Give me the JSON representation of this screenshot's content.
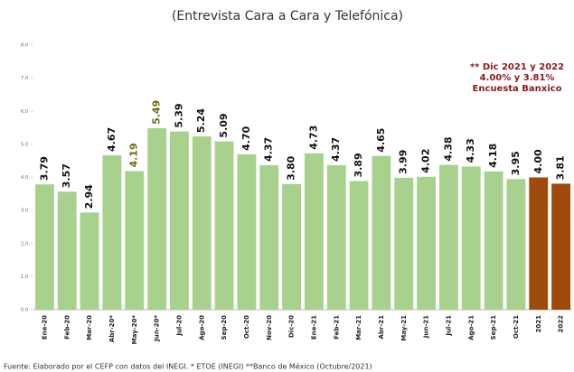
{
  "chart_data": {
    "type": "bar",
    "title": "(Entrevista Cara a Cara y Telefónica)",
    "annotation": [
      "** Dic 2021 y 2022",
      "4.00% y 3.81%",
      "Encuesta Banxico"
    ],
    "source": "Fuente: Elaborado por el CEFP con datos del INEGI. * ETOE (INEGI) **Banco de México (Octubre/2021)",
    "categories": [
      "Ene-20",
      "Feb-20",
      "Mar-20",
      "Abr-20*",
      "May-20*",
      "Jun-20*",
      "Jul-20",
      "Ago-20",
      "Sep-20",
      "Oct-20",
      "Nov-20",
      "Dic-20",
      "Ene-21",
      "Feb-21",
      "Mar-21",
      "Abr-21",
      "May-21",
      "Jun-21",
      "Jul-21",
      "Ago-21",
      "Sep-21",
      "Oct-21",
      "2021",
      "2022"
    ],
    "values": [
      3.79,
      3.57,
      2.94,
      4.67,
      4.19,
      5.49,
      5.39,
      5.24,
      5.09,
      4.7,
      4.37,
      3.8,
      4.73,
      4.37,
      3.89,
      4.65,
      3.99,
      4.02,
      4.38,
      4.33,
      4.18,
      3.95,
      4.0,
      3.81
    ],
    "value_labels": [
      "3.79",
      "3.57",
      "2.94",
      "4.67",
      "4.19",
      "5.49",
      "5.39",
      "5.24",
      "5.09",
      "4.70",
      "4.37",
      "3.80",
      "4.73",
      "4.37",
      "3.89",
      "4.65",
      "3.99",
      "4.02",
      "4.38",
      "4.33",
      "4.18",
      "3.95",
      "4.00",
      "3.81"
    ],
    "colors": [
      "#a9d18e",
      "#a9d18e",
      "#a9d18e",
      "#a9d18e",
      "#a9d18e",
      "#a9d18e",
      "#a9d18e",
      "#a9d18e",
      "#a9d18e",
      "#a9d18e",
      "#a9d18e",
      "#a9d18e",
      "#a9d18e",
      "#a9d18e",
      "#a9d18e",
      "#a9d18e",
      "#a9d18e",
      "#a9d18e",
      "#a9d18e",
      "#a9d18e",
      "#a9d18e",
      "#a9d18e",
      "#9e4a0c",
      "#9e4a0c"
    ],
    "label_colors": [
      "#111",
      "#111",
      "#111",
      "#111",
      "#6b6b10",
      "#6b6b10",
      "#111",
      "#111",
      "#111",
      "#111",
      "#111",
      "#111",
      "#111",
      "#111",
      "#111",
      "#111",
      "#111",
      "#111",
      "#111",
      "#111",
      "#111",
      "#111",
      "#111",
      "#111"
    ],
    "ylim": [
      0,
      8
    ],
    "yticks": [
      {
        "value": 0,
        "label": "0.0"
      },
      {
        "value": 1,
        "label": "1.0"
      },
      {
        "value": 2,
        "label": "2.0"
      },
      {
        "value": 3,
        "label": "3.0"
      },
      {
        "value": 4,
        "label": "4.0"
      },
      {
        "value": 5,
        "label": "5.0"
      },
      {
        "value": 6,
        "label": "6.0"
      },
      {
        "value": 7,
        "label": "7.0"
      },
      {
        "value": 8,
        "label": "8.0"
      }
    ]
  }
}
